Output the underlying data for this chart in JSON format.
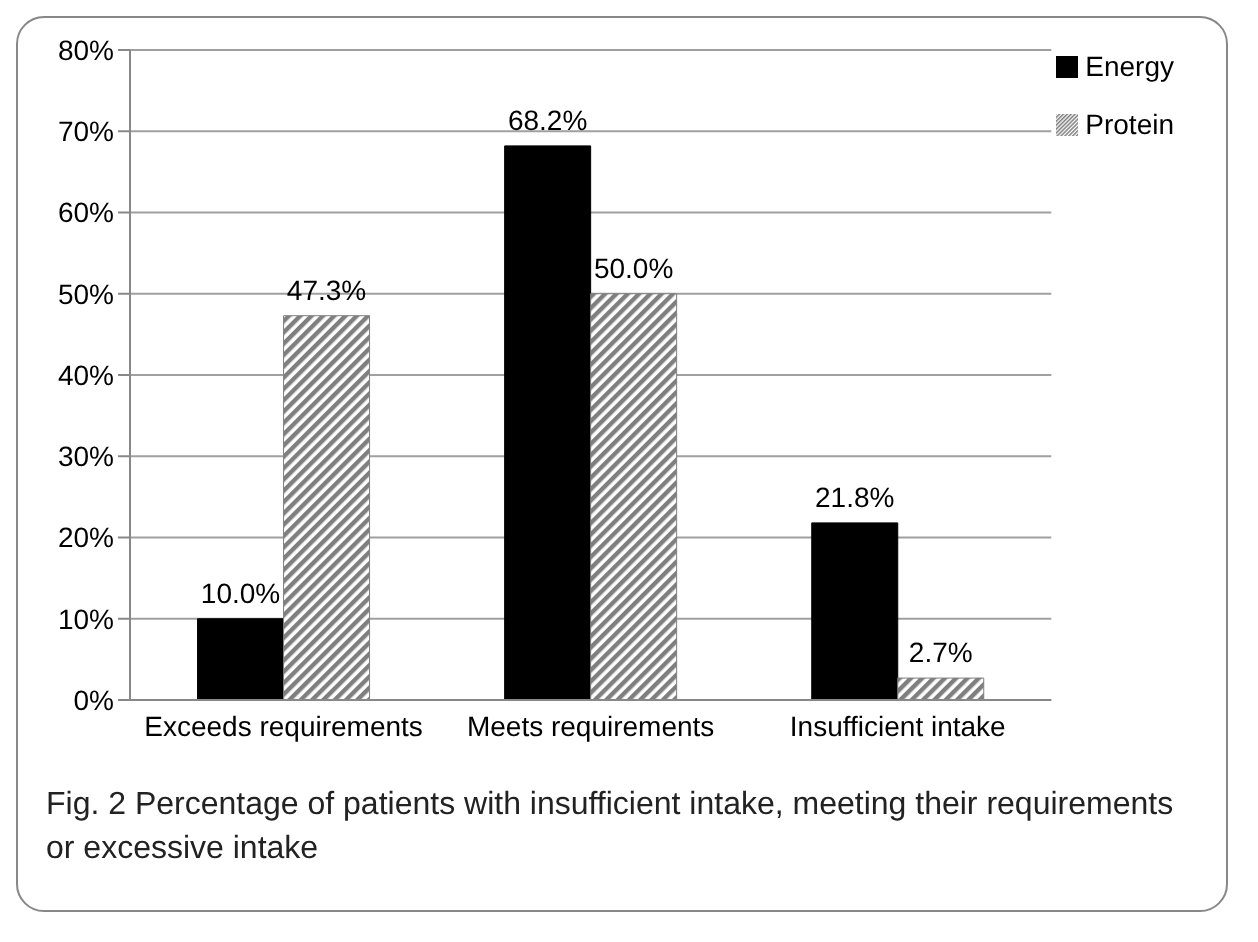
{
  "chart_data": {
    "type": "bar",
    "categories": [
      "Exceeds requirements",
      "Meets requirements",
      "Insufficient intake"
    ],
    "series": [
      {
        "name": "Energy",
        "color": "#000000",
        "values": [
          10.0,
          68.2,
          21.8
        ],
        "value_labels": [
          "10.0%",
          "68.2%",
          "21.8%"
        ]
      },
      {
        "name": "Protein",
        "color": "#7f7f7f",
        "values": [
          47.3,
          50.0,
          2.7
        ],
        "value_labels": [
          "47.3%",
          "50.0%",
          "2.7%"
        ]
      }
    ],
    "ylim": [
      0,
      80
    ],
    "yticks": [
      {
        "value": 0,
        "label": "0%"
      },
      {
        "value": 10,
        "label": "10%"
      },
      {
        "value": 20,
        "label": "20%"
      },
      {
        "value": 30,
        "label": "30%"
      },
      {
        "value": 40,
        "label": "40%"
      },
      {
        "value": 50,
        "label": "50%"
      },
      {
        "value": 60,
        "label": "60%"
      },
      {
        "value": 70,
        "label": "70%"
      },
      {
        "value": 80,
        "label": "80%"
      }
    ],
    "grid": "y",
    "legend": "top right",
    "annotations": [
      "Fig. 2  Percentage of patients with insufficient intake, meeting their requirements or excessive intake"
    ]
  }
}
